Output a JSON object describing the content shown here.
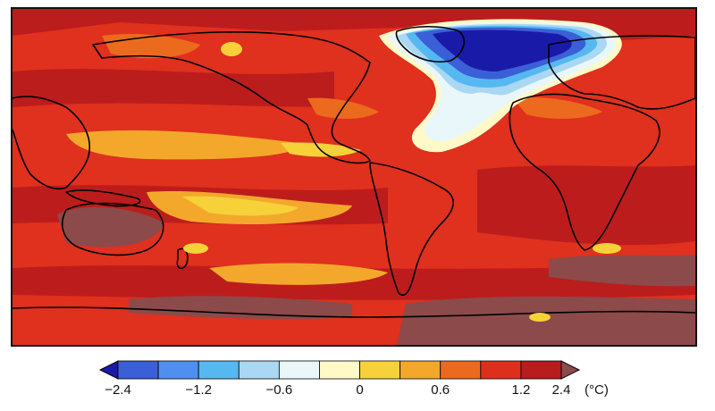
{
  "map": {
    "title": "",
    "unit": "(°C)",
    "colors": {
      "ocean_base": "#e0301e",
      "dark": "#8c4a4a",
      "land_line": "#000000"
    }
  },
  "colorbar": {
    "colors": [
      "#1a1aa8",
      "#3b5fd6",
      "#4f8fef",
      "#56b8f0",
      "#a9d7f4",
      "#e9f7fb",
      "#fff9c8",
      "#f6d13a",
      "#f3a82b",
      "#ec6a1e",
      "#de2f1c",
      "#b81c1c",
      "#8c4a4a"
    ],
    "ticks": [
      {
        "label": "−2.4",
        "value": -2.4
      },
      {
        "label": "−1.2",
        "value": -1.2
      },
      {
        "label": "−0.6",
        "value": -0.6
      },
      {
        "label": "0",
        "value": 0
      },
      {
        "label": "0.6",
        "value": 0.6
      },
      {
        "label": "1.2",
        "value": 1.2
      },
      {
        "label": "2.4",
        "value": 2.4
      }
    ]
  }
}
